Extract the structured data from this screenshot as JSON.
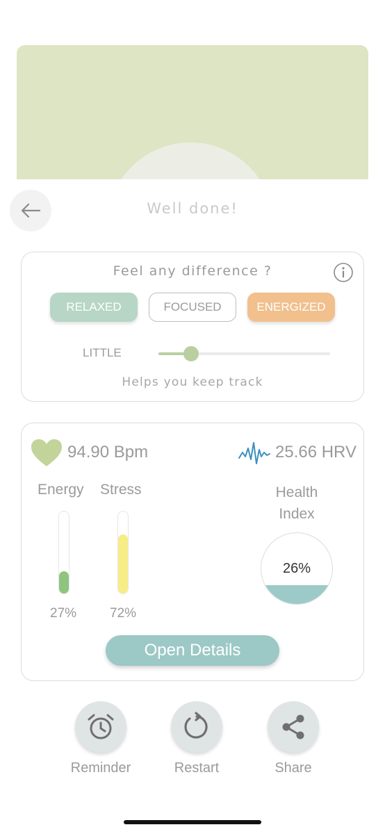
{
  "colors": {
    "hero_bg": "#dde5c4",
    "relaxed": "#b7d6c5",
    "energized": "#f1c08d",
    "energy_bar": "#8fc47f",
    "stress_bar": "#f7ed86",
    "health_fill": "#9ccac8",
    "heart": "#c2d49a",
    "hrv_wave": "#3a8fbf"
  },
  "header": {
    "back_icon": "arrow-left-icon",
    "title": "Well done!"
  },
  "feedback": {
    "question": "Feel any difference ?",
    "info_icon": "info-icon",
    "moods": [
      {
        "label": "RELAXED",
        "selected": true
      },
      {
        "label": "FOCUSED",
        "selected": false
      },
      {
        "label": "ENERGIZED",
        "selected": true
      }
    ],
    "intensity_label": "LITTLE",
    "intensity_level": 0.19,
    "hint": "Helps you keep track"
  },
  "stats": {
    "heart_icon": "heart-icon",
    "bpm_text": "94.90 Bpm",
    "hrv_icon": "heartbeat-wave-icon",
    "hrv_text": "25.66 HRV",
    "energy": {
      "label": "Energy",
      "value": 27,
      "display": "27%"
    },
    "stress": {
      "label": "Stress",
      "value": 72,
      "display": "72%"
    },
    "health_index": {
      "label_line1": "Health",
      "label_line2": "Index",
      "value": 26,
      "display": "26%"
    },
    "details_button": "Open Details"
  },
  "actions": [
    {
      "label": "Reminder",
      "icon": "alarm-clock-icon"
    },
    {
      "label": "Restart",
      "icon": "restart-icon"
    },
    {
      "label": "Share",
      "icon": "share-icon"
    }
  ]
}
